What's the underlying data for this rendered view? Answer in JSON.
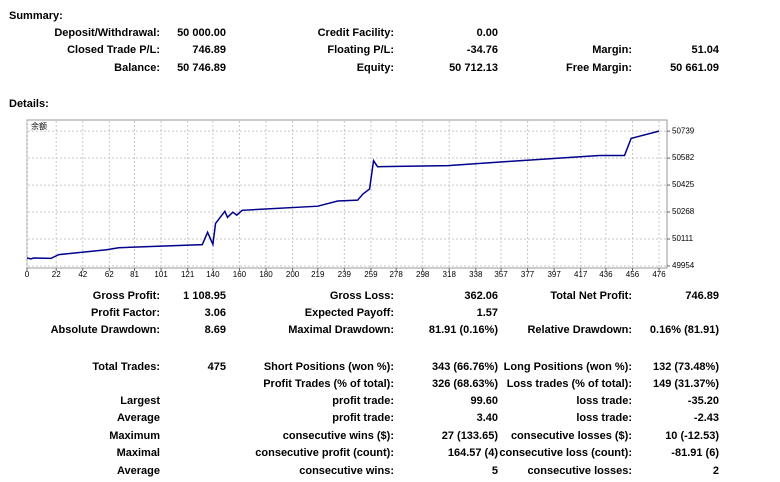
{
  "summary": {
    "title": "Summary:",
    "rows": [
      {
        "left": {
          "label": "Deposit/Withdrawal:",
          "value": "50 000.00"
        },
        "middle": {
          "label": "Credit Facility:",
          "value": "0.00"
        }
      },
      {
        "left": {
          "label": "Closed Trade P/L:",
          "value": "746.89"
        },
        "middle": {
          "label": "Floating P/L:",
          "value": "-34.76"
        },
        "right": {
          "label": "Margin:",
          "value": "51.04"
        }
      },
      {
        "left": {
          "label": "Balance:",
          "value": "50 746.89"
        },
        "middle": {
          "label": "Equity:",
          "value": "50 712.13"
        },
        "right": {
          "label": "Free Margin:",
          "value": "50 661.09"
        }
      }
    ]
  },
  "details": {
    "title": "Details:",
    "rows": [
      {
        "left": {
          "label": "Gross Profit:",
          "value": "1 108.95"
        },
        "middle": {
          "label": "Gross Loss:",
          "value": "362.06"
        },
        "right": {
          "label": "Total Net Profit:",
          "value": "746.89"
        }
      },
      {
        "left": {
          "label": "Profit Factor:",
          "value": "3.06"
        },
        "middle": {
          "label": "Expected Payoff:",
          "value": "1.57"
        }
      },
      {
        "left": {
          "label": "Absolute Drawdown:",
          "value": "8.69"
        },
        "middle": {
          "label": "Maximal Drawdown:",
          "value": "81.91 (0.16%)"
        },
        "right": {
          "label": "Relative Drawdown:",
          "value": "0.16% (81.91)"
        }
      },
      {
        "left": {
          "label": "Total Trades:",
          "value": "475"
        },
        "middle": {
          "label": "Short Positions (won %):",
          "value": "343 (66.76%)"
        },
        "right": {
          "label": "Long Positions (won %):",
          "value": "132 (73.48%)"
        }
      },
      {
        "middle": {
          "label": "Profit Trades (% of total):",
          "value": "326 (68.63%)"
        },
        "right": {
          "label": "Loss trades (% of total):",
          "value": "149 (31.37%)"
        }
      },
      {
        "left": {
          "label": "Largest"
        },
        "middle": {
          "label": "profit trade:",
          "value": "99.60"
        },
        "right": {
          "label": "loss trade:",
          "value": "-35.20"
        }
      },
      {
        "left": {
          "label": "Average"
        },
        "middle": {
          "label": "profit trade:",
          "value": "3.40"
        },
        "right": {
          "label": "loss trade:",
          "value": "-2.43"
        }
      },
      {
        "left": {
          "label": "Maximum"
        },
        "middle": {
          "label": "consecutive wins ($):",
          "value": "27 (133.65)"
        },
        "right": {
          "label": "consecutive losses ($):",
          "value": "10 (-12.53)"
        }
      },
      {
        "left": {
          "label": "Maximal"
        },
        "middle": {
          "label": "consecutive profit (count):",
          "value": "164.57 (4)"
        },
        "right": {
          "label": "consecutive loss (count):",
          "value": "-81.91 (6)"
        }
      },
      {
        "left": {
          "label": "Average"
        },
        "middle": {
          "label": "consecutive wins:",
          "value": "5"
        },
        "right": {
          "label": "consecutive losses:",
          "value": "2"
        }
      }
    ]
  },
  "chart_data": {
    "type": "line",
    "x": [
      0,
      3,
      5,
      18,
      24,
      60,
      69,
      132,
      136,
      140,
      142,
      149,
      151,
      155,
      158,
      162,
      219,
      234,
      249,
      253,
      258,
      261,
      264,
      317,
      362,
      431,
      450,
      455,
      476
    ],
    "series": [
      {
        "name": "余额",
        "color": "#00008b",
        "values": [
          50000,
          49995,
          50000,
          49998,
          50020,
          50048,
          50060,
          50078,
          50150,
          50080,
          50202,
          50272,
          50237,
          50267,
          50250,
          50278,
          50302,
          50332,
          50337,
          50373,
          50402,
          50567,
          50532,
          50538,
          50562,
          50597,
          50597,
          50697,
          50739
        ]
      }
    ],
    "xlim": [
      0,
      482
    ],
    "xticks": [
      0,
      22,
      42,
      62,
      81,
      101,
      121,
      140,
      160,
      180,
      200,
      219,
      239,
      259,
      278,
      298,
      318,
      338,
      357,
      377,
      397,
      417,
      436,
      456,
      476
    ],
    "ylim": [
      49942,
      50804
    ],
    "yticks": [
      49954,
      50111,
      50268,
      50425,
      50582,
      50739
    ],
    "grid": true
  }
}
